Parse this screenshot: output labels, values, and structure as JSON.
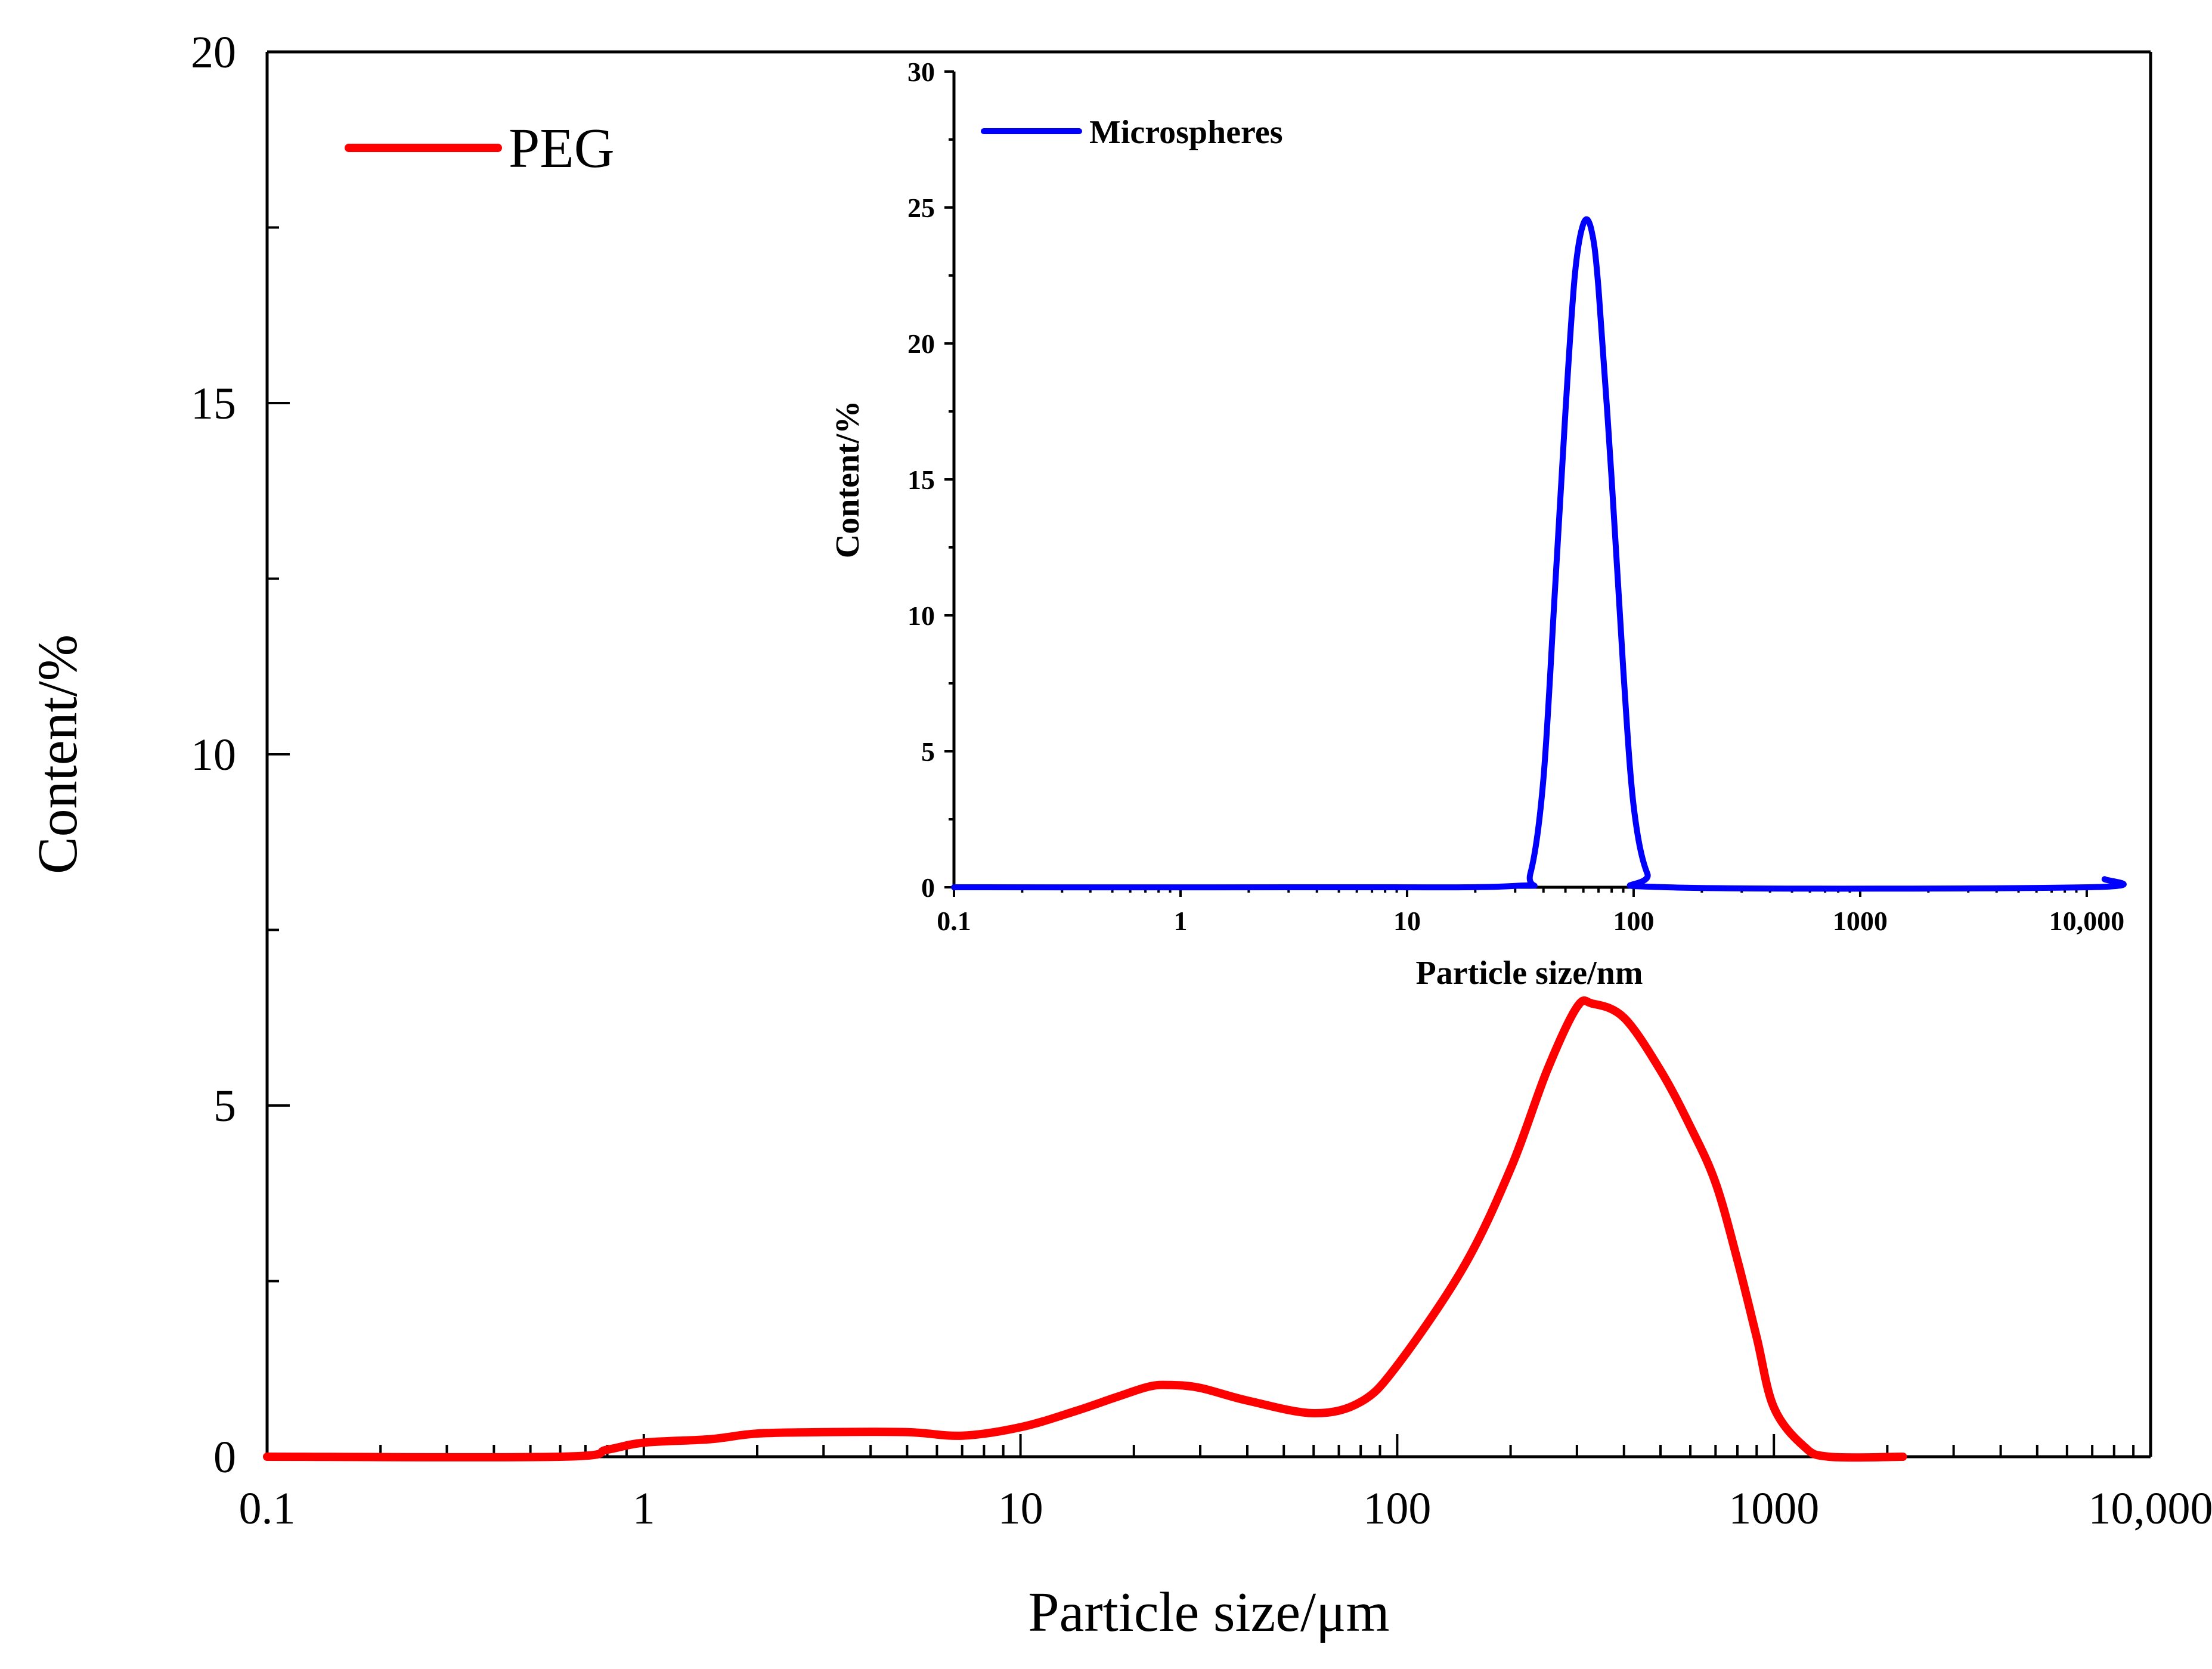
{
  "chart_data": [
    {
      "type": "line",
      "xscale": "log",
      "xlabel": "Particle size/μm",
      "ylabel": "Content/%",
      "xlim": [
        0.1,
        10000
      ],
      "ylim": [
        0,
        20
      ],
      "x_ticks": [
        0.1,
        1,
        10,
        100,
        1000,
        10000
      ],
      "x_tick_labels": [
        "0.1",
        "1",
        "10",
        "100",
        "1000",
        "10,000"
      ],
      "y_ticks": [
        0,
        5,
        10,
        15,
        20
      ],
      "y_tick_labels": [
        "0",
        "5",
        "10",
        "15",
        "20"
      ],
      "legend_position": "top-left",
      "series": [
        {
          "name": "PEG",
          "color": "#ff0000",
          "points": [
            [
              0.1,
              0
            ],
            [
              0.6,
              0
            ],
            [
              0.8,
              0.1
            ],
            [
              1,
              0.2
            ],
            [
              1.5,
              0.25
            ],
            [
              2,
              0.33
            ],
            [
              3,
              0.35
            ],
            [
              5,
              0.35
            ],
            [
              7,
              0.3
            ],
            [
              10,
              0.42
            ],
            [
              14,
              0.65
            ],
            [
              18,
              0.85
            ],
            [
              22,
              1.0
            ],
            [
              25,
              1.02
            ],
            [
              30,
              0.98
            ],
            [
              40,
              0.8
            ],
            [
              60,
              0.62
            ],
            [
              80,
              0.78
            ],
            [
              100,
              1.3
            ],
            [
              150,
              2.7
            ],
            [
              200,
              4.1
            ],
            [
              250,
              5.5
            ],
            [
              300,
              6.4
            ],
            [
              330,
              6.45
            ],
            [
              400,
              6.25
            ],
            [
              500,
              5.5
            ],
            [
              600,
              4.7
            ],
            [
              700,
              3.9
            ],
            [
              800,
              2.8
            ],
            [
              900,
              1.7
            ],
            [
              1000,
              0.7
            ],
            [
              1200,
              0.15
            ],
            [
              1400,
              0
            ],
            [
              2200,
              0
            ]
          ]
        }
      ]
    },
    {
      "type": "line",
      "xscale": "log",
      "xlabel": "Particle size/nm",
      "ylabel": "Content/%",
      "xlim": [
        0.1,
        12000
      ],
      "ylim": [
        0,
        30
      ],
      "x_ticks": [
        0.1,
        1,
        10,
        100,
        1000,
        10000
      ],
      "x_tick_labels": [
        "0.1",
        "1",
        "10",
        "100",
        "1000",
        "10,000"
      ],
      "y_ticks": [
        0,
        5,
        10,
        15,
        20,
        25,
        30
      ],
      "y_tick_labels": [
        "0",
        "5",
        "10",
        "15",
        "20",
        "25",
        "30"
      ],
      "legend_position": "top-left",
      "series": [
        {
          "name": "Microspheres",
          "color": "#0000ff",
          "points": [
            [
              0.1,
              0
            ],
            [
              4,
              0
            ],
            [
              30,
              0.05
            ],
            [
              35,
              0.5
            ],
            [
              40,
              4
            ],
            [
              45,
              11
            ],
            [
              50,
              17.5
            ],
            [
              55,
              22.5
            ],
            [
              60,
              24.4
            ],
            [
              65,
              24.2
            ],
            [
              70,
              22
            ],
            [
              80,
              15
            ],
            [
              90,
              8
            ],
            [
              100,
              3
            ],
            [
              115,
              0.5
            ],
            [
              140,
              0
            ],
            [
              10000,
              0
            ],
            [
              12000,
              0.3
            ]
          ]
        }
      ]
    }
  ]
}
